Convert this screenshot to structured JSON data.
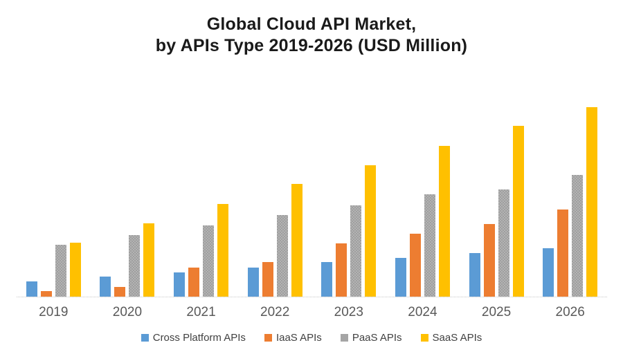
{
  "title": {
    "line1": "Global Cloud API Market,",
    "line2": "by APIs Type 2019-2026 (USD Million)"
  },
  "chart_data": {
    "type": "bar",
    "title": "Global Cloud API Market, by APIs Type 2019-2026 (USD Million)",
    "categories": [
      "2019",
      "2020",
      "2021",
      "2022",
      "2023",
      "2024",
      "2025",
      "2026"
    ],
    "series": [
      {
        "name": "Cross Platform APIs",
        "color": "#5B9BD5",
        "pattern": "solid",
        "values": [
          22,
          29,
          35,
          42,
          50,
          56,
          63,
          70
        ]
      },
      {
        "name": "IaaS APIs",
        "color": "#ED7D31",
        "pattern": "solid",
        "values": [
          8,
          14,
          42,
          50,
          77,
          91,
          105,
          126
        ]
      },
      {
        "name": "PaaS APIs",
        "color": "#A5A5A5",
        "pattern": "checker",
        "values": [
          75,
          89,
          103,
          118,
          132,
          148,
          155,
          176
        ]
      },
      {
        "name": "SaaS APIs",
        "color": "#FFC000",
        "pattern": "solid",
        "values": [
          78,
          106,
          134,
          163,
          190,
          218,
          247,
          274
        ]
      }
    ],
    "value_note": "No value axis or data labels are shown in the chart; values are relative bar heights measured in screenshot pixels from the baseline",
    "xlabel": "",
    "ylabel": "",
    "ylim": [
      0,
      290
    ],
    "grid": false,
    "y_axis_visible": false,
    "legend_position": "bottom",
    "axis_line_color": "#C6C6C6",
    "x_tick_label_color": "#595959",
    "legend_text_color": "#404040",
    "title_color": "#1A1A1A",
    "background_color": "#FFFFFF"
  }
}
